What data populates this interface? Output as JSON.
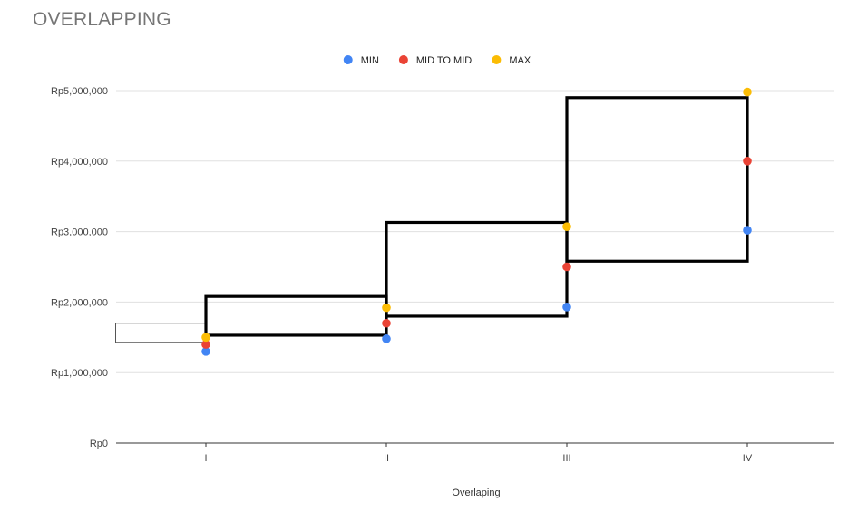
{
  "chart_data": {
    "type": "scatter",
    "title": "OVERLAPPING",
    "xlabel": "Overlaping",
    "ylabel": "",
    "categories": [
      "I",
      "II",
      "III",
      "IV"
    ],
    "ylim": [
      0,
      5000000
    ],
    "y_ticks": [
      0,
      1000000,
      2000000,
      3000000,
      4000000,
      5000000
    ],
    "y_tick_labels": [
      "Rp0",
      "Rp1,000,000",
      "Rp2,000,000",
      "Rp3,000,000",
      "Rp4,000,000",
      "Rp5,000,000"
    ],
    "grid": true,
    "legend_position": "top",
    "series": [
      {
        "name": "MIN",
        "color": "#4285f4",
        "values": [
          1300000,
          1480000,
          1930000,
          3020000
        ]
      },
      {
        "name": "MID TO MID",
        "color": "#ea4335",
        "values": [
          1400000,
          1700000,
          2500000,
          4000000
        ]
      },
      {
        "name": "MAX",
        "color": "#fbbc04",
        "values": [
          1500000,
          1920000,
          3070000,
          4980000
        ]
      }
    ],
    "overlay_boxes": [
      {
        "from_category": -0.5,
        "to_category": 0,
        "y_low": 1430000,
        "y_high": 1700000,
        "style": "thin"
      },
      {
        "from_category": 0,
        "to_category": 1,
        "y_low": 1530000,
        "y_high": 2080000,
        "style": "thick"
      },
      {
        "from_category": 1,
        "to_category": 2,
        "y_low": 1800000,
        "y_high": 3130000,
        "style": "thick"
      },
      {
        "from_category": 2,
        "to_category": 3,
        "y_low": 2580000,
        "y_high": 4900000,
        "style": "thick"
      }
    ]
  }
}
